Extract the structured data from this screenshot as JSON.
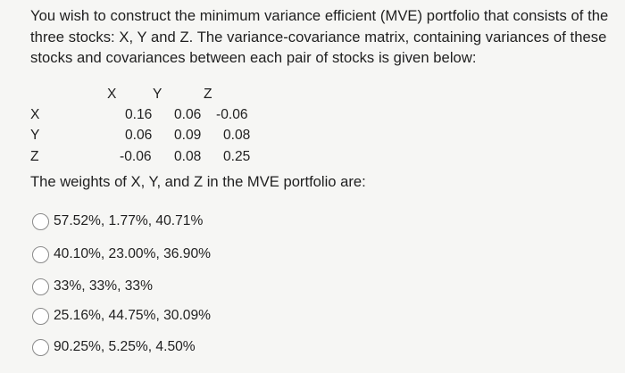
{
  "question": {
    "text": "You wish to construct the minimum variance efficient (MVE) portfolio that consists of the three stocks: X, Y and Z. The variance-covariance matrix, containing variances of these stocks and covariances between each pair of stocks is given below:"
  },
  "matrix": {
    "column_headers": [
      "X",
      "Y",
      "Z"
    ],
    "row_labels": [
      "X",
      "Y",
      "Z"
    ],
    "rows": [
      [
        "0.16",
        "0.06",
        "-0.06"
      ],
      [
        "0.06",
        "0.09",
        "0.08"
      ],
      [
        "-0.06",
        "0.08",
        "0.25"
      ]
    ]
  },
  "prompt": "The weights of X, Y, and Z in the MVE portfolio are:",
  "options": [
    "57.52%, 1.77%, 40.71%",
    "40.10%, 23.00%, 36.90%",
    "33%, 33%, 33%",
    "25.16%, 44.75%, 30.09%",
    "90.25%, 5.25%, 4.50%"
  ]
}
